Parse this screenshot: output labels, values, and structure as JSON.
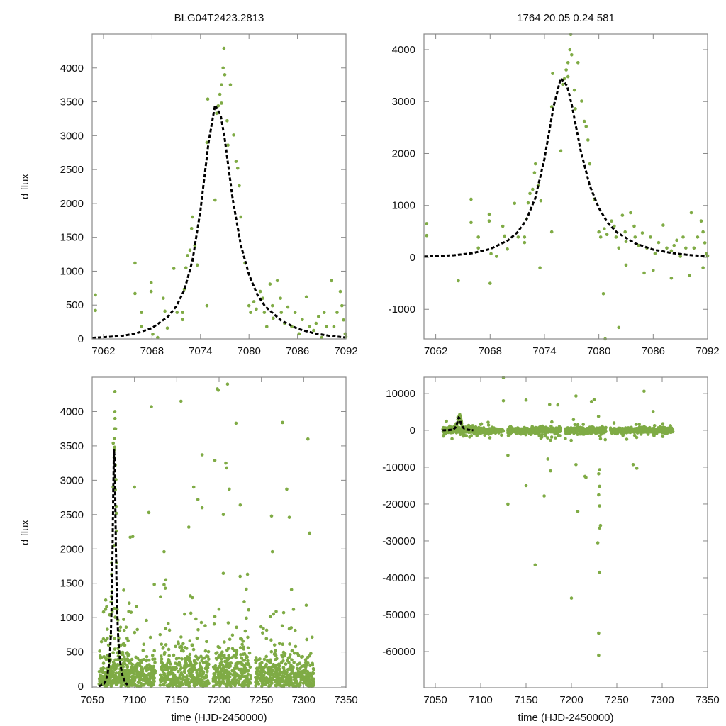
{
  "colors": {
    "points": "#7fab45",
    "model": "#000000",
    "frame": "#888888"
  },
  "chart_data": [
    {
      "id": "tl",
      "type": "scatter",
      "title": "BLG04T2423.2813",
      "xlabel": "",
      "ylabel": "d flux",
      "xlim": [
        7060.6,
        7092
      ],
      "ylim": [
        0,
        4500
      ],
      "xticks": [
        7062,
        7068,
        7074,
        7080,
        7086,
        7092
      ],
      "yticks": [
        0,
        500,
        1000,
        1500,
        2000,
        2500,
        3000,
        3500,
        4000
      ],
      "uses": "zoom_points"
    },
    {
      "id": "tr",
      "type": "scatter",
      "title": "1764  20.05  0.24  581",
      "xlabel": "",
      "ylabel": "",
      "xlim": [
        7060.7,
        7092
      ],
      "ylim": [
        -1570,
        4300
      ],
      "xticks": [
        7062,
        7068,
        7074,
        7080,
        7086,
        7092
      ],
      "yticks": [
        -1000,
        0,
        1000,
        2000,
        3000,
        4000
      ],
      "uses": "zoom_points"
    },
    {
      "id": "bl",
      "type": "scatter",
      "title": "",
      "xlabel": "time (HJD-2450000)",
      "ylabel": "d flux",
      "xlim": [
        7050,
        7350
      ],
      "ylim": [
        -20,
        4500
      ],
      "xticks": [
        7050,
        7100,
        7150,
        7200,
        7250,
        7300,
        7350
      ],
      "yticks": [
        0,
        500,
        1000,
        1500,
        2000,
        2500,
        3000,
        3500,
        4000
      ],
      "uses": "season",
      "outliers": [
        [
          7120,
          4070
        ],
        [
          7100,
          2900
        ],
        [
          7095,
          2170
        ],
        [
          7098,
          2180
        ],
        [
          7117,
          2530
        ],
        [
          7135,
          1960
        ],
        [
          7155,
          4150
        ],
        [
          7180,
          3370
        ],
        [
          7198,
          4330
        ],
        [
          7199,
          4310
        ],
        [
          7210,
          4400
        ],
        [
          7208,
          3250
        ],
        [
          7209,
          3180
        ],
        [
          7220,
          3830
        ],
        [
          7275,
          3840
        ],
        [
          7280,
          2870
        ],
        [
          7305,
          3600
        ],
        [
          7307,
          2230
        ],
        [
          7262,
          2480
        ],
        [
          7263,
          1960
        ],
        [
          7195,
          3290
        ],
        [
          7175,
          2720
        ],
        [
          7225,
          2640
        ],
        [
          7170,
          2900
        ],
        [
          7212,
          2870
        ],
        [
          7180,
          2600
        ],
        [
          7283,
          2460
        ],
        [
          7205,
          2500
        ]
      ]
    },
    {
      "id": "br",
      "type": "scatter",
      "title": "",
      "xlabel": "time (HJD-2450000)",
      "ylabel": "",
      "xlim": [
        7037.5,
        7350
      ],
      "ylim": [
        -69800,
        14400
      ],
      "xticks": [
        7050,
        7100,
        7150,
        7200,
        7250,
        7300,
        7350
      ],
      "yticks": [
        -60000,
        -50000,
        -40000,
        -30000,
        -20000,
        -10000,
        0,
        10000
      ],
      "uses": "season_wide",
      "outliers": [
        [
          7125,
          14300
        ],
        [
          7125,
          8000
        ],
        [
          7130,
          -20000
        ],
        [
          7130,
          -6800
        ],
        [
          7160,
          -36500
        ],
        [
          7150,
          -15000
        ],
        [
          7170,
          -17800
        ],
        [
          7200,
          -45500
        ],
        [
          7207,
          -22000
        ],
        [
          7215,
          -12500
        ],
        [
          7216,
          -12800
        ],
        [
          7220,
          14500
        ],
        [
          7230,
          -55000
        ],
        [
          7230,
          -61000
        ],
        [
          7230,
          -70000
        ],
        [
          7231,
          -38500
        ],
        [
          7229,
          -30500
        ],
        [
          7232,
          -25800
        ],
        [
          7231,
          -26500
        ],
        [
          7231,
          -20500
        ],
        [
          7230,
          -17500
        ],
        [
          7280,
          10600
        ],
        [
          7205,
          9300
        ],
        [
          7225,
          8300
        ],
        [
          7222,
          7800
        ],
        [
          7176,
          7000
        ],
        [
          7185,
          6900
        ],
        [
          7150,
          8200
        ],
        [
          7268,
          -9300
        ],
        [
          7272,
          -10300
        ],
        [
          7205,
          -9300
        ],
        [
          7177,
          -11000
        ],
        [
          7174,
          -7800
        ],
        [
          7230,
          -11800
        ],
        [
          7231,
          -10700
        ],
        [
          7231,
          -15200
        ],
        [
          7290,
          5100
        ]
      ]
    }
  ],
  "model_curve": {
    "t": [
      7058,
      7060,
      7062,
      7064,
      7066,
      7068,
      7070,
      7071,
      7072,
      7073,
      7074,
      7075,
      7075.8,
      7076.5,
      7077,
      7078,
      7079,
      7080,
      7081,
      7082,
      7084,
      7086,
      7088,
      7090,
      7092
    ],
    "flux": [
      5,
      10,
      25,
      40,
      80,
      160,
      330,
      480,
      720,
      1150,
      1900,
      2900,
      3450,
      3300,
      2950,
      2050,
      1380,
      950,
      660,
      480,
      270,
      150,
      85,
      45,
      20
    ]
  },
  "zoom_points": [
    [
      7061.0,
      650
    ],
    [
      7061.0,
      420
    ],
    [
      7065.9,
      1120
    ],
    [
      7065.9,
      670
    ],
    [
      7066.7,
      390
    ],
    [
      7066.7,
      180
    ],
    [
      7067.9,
      830
    ],
    [
      7067.9,
      700
    ],
    [
      7068.1,
      70
    ],
    [
      7068.7,
      20
    ],
    [
      7069.4,
      600
    ],
    [
      7069.6,
      410
    ],
    [
      7069.9,
      160
    ],
    [
      7070.7,
      1040
    ],
    [
      7071.1,
      390
    ],
    [
      7071.8,
      390
    ],
    [
      7071.8,
      285
    ],
    [
      7072.0,
      735
    ],
    [
      7072.2,
      1050
    ],
    [
      7072.4,
      1230
    ],
    [
      7072.7,
      1310
    ],
    [
      7072.9,
      1630
    ],
    [
      7073.0,
      1800
    ],
    [
      7073.3,
      1380
    ],
    [
      7073.6,
      1090
    ],
    [
      7074.8,
      490
    ],
    [
      7074.8,
      2900
    ],
    [
      7074.9,
      3540
    ],
    [
      7075.8,
      2050
    ],
    [
      7076.0,
      3330
    ],
    [
      7076.2,
      3440
    ],
    [
      7076.4,
      3610
    ],
    [
      7076.6,
      3480
    ],
    [
      7076.6,
      3750
    ],
    [
      7076.8,
      4000
    ],
    [
      7076.9,
      4290
    ],
    [
      7077.0,
      3900
    ],
    [
      7077.3,
      3220
    ],
    [
      7077.4,
      2860
    ],
    [
      7077.7,
      3750
    ],
    [
      7078.1,
      3010
    ],
    [
      7078.4,
      2620
    ],
    [
      7078.6,
      2520
    ],
    [
      7078.8,
      2260
    ],
    [
      7079.0,
      1800
    ],
    [
      7079.5,
      1120
    ],
    [
      7080.0,
      490
    ],
    [
      7080.2,
      390
    ],
    [
      7080.6,
      550
    ],
    [
      7080.9,
      440
    ],
    [
      7081.4,
      700
    ],
    [
      7081.7,
      600
    ],
    [
      7081.9,
      390
    ],
    [
      7082.2,
      180
    ],
    [
      7082.6,
      810
    ],
    [
      7082.9,
      490
    ],
    [
      7083.0,
      305
    ],
    [
      7083.5,
      860
    ],
    [
      7083.9,
      600
    ],
    [
      7084.0,
      390
    ],
    [
      7084.4,
      230
    ],
    [
      7084.8,
      470
    ],
    [
      7085.3,
      180
    ],
    [
      7085.7,
      390
    ],
    [
      7086.2,
      75
    ],
    [
      7086.6,
      285
    ],
    [
      7087.1,
      620
    ],
    [
      7087.5,
      180
    ],
    [
      7088.0,
      125
    ],
    [
      7088.3,
      230
    ],
    [
      7088.6,
      330
    ],
    [
      7089.0,
      20
    ],
    [
      7089.3,
      390
    ],
    [
      7089.6,
      180
    ],
    [
      7090.2,
      860
    ],
    [
      7090.5,
      180
    ],
    [
      7090.9,
      390
    ],
    [
      7091.3,
      700
    ],
    [
      7091.5,
      490
    ],
    [
      7091.7,
      280
    ],
    [
      7091.9,
      75
    ],
    [
      7092.0,
      30
    ],
    [
      7080.5,
      -700
    ],
    [
      7082.2,
      -1350
    ],
    [
      7080.7,
      -1570
    ],
    [
      7073.5,
      -200
    ],
    [
      7068,
      -500
    ],
    [
      7064.5,
      -450
    ],
    [
      7085,
      -300
    ],
    [
      7088,
      -400
    ],
    [
      7090,
      -350
    ],
    [
      7091.5,
      -200
    ],
    [
      7083,
      -150
    ],
    [
      7086,
      -250
    ]
  ],
  "season_segments": [
    [
      7058,
      7125,
      300
    ],
    [
      7130,
      7188,
      350
    ],
    [
      7193,
      7238,
      380
    ],
    [
      7243,
      7312,
      300
    ]
  ]
}
